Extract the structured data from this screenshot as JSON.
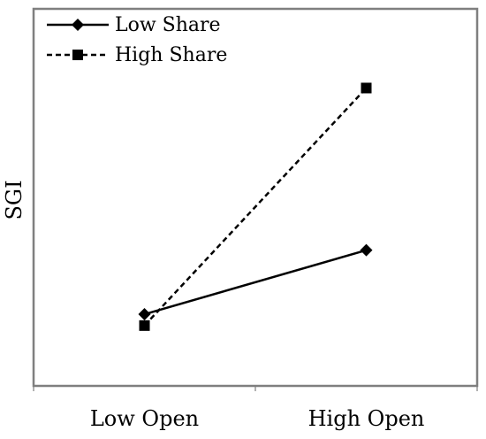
{
  "chart_data": {
    "type": "line",
    "categories": [
      "Low Open",
      "High Open"
    ],
    "ylabel": "SGI",
    "xlabel": "",
    "title": "",
    "grid": false,
    "legend_position": "top-left",
    "ylim": [
      0,
      10
    ],
    "series": [
      {
        "name": "Low Share",
        "values": [
          1.9,
          3.6
        ],
        "line_style": "solid",
        "marker": "diamond",
        "color": "#000000"
      },
      {
        "name": "High Share",
        "values": [
          1.6,
          7.9
        ],
        "line_style": "dashed",
        "marker": "square",
        "color": "#000000"
      }
    ]
  }
}
